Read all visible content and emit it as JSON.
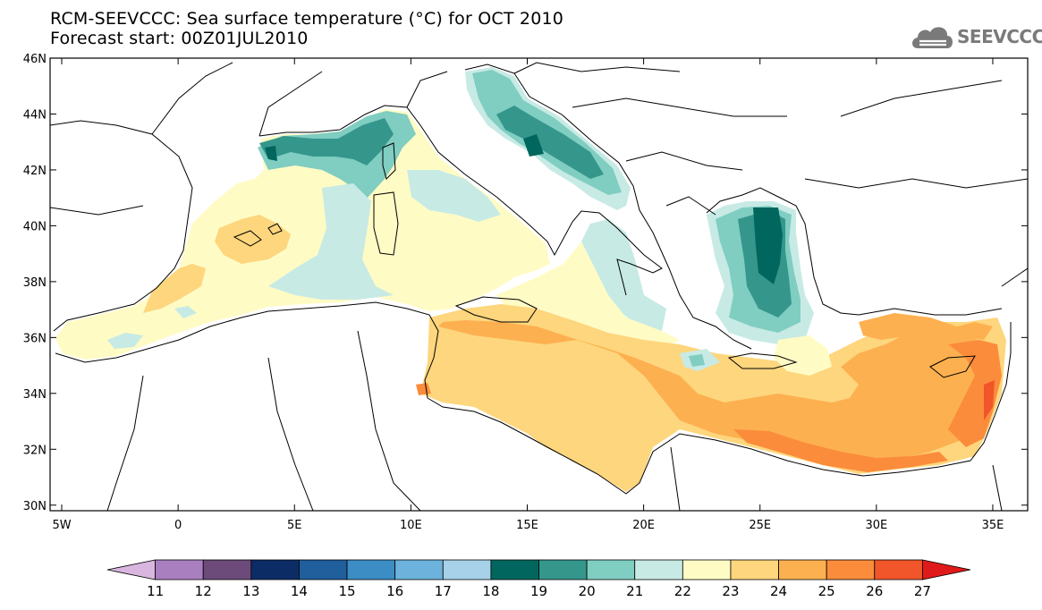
{
  "header": {
    "title_line1": "RCM-SEEVCCC: Sea surface temperature (°C) for OCT 2010",
    "title_line2": "Forecast start: 00Z01JUL2010"
  },
  "logo": {
    "text": "SEEVCCC",
    "icon": "cloud-icon"
  },
  "map": {
    "lon_range": [
      -5.5,
      36.5
    ],
    "lat_range": [
      29.8,
      46
    ],
    "lat_ticks": [
      {
        "value": 46,
        "label": "46N"
      },
      {
        "value": 44,
        "label": "44N"
      },
      {
        "value": 42,
        "label": "42N"
      },
      {
        "value": 40,
        "label": "40N"
      },
      {
        "value": 38,
        "label": "38N"
      },
      {
        "value": 36,
        "label": "36N"
      },
      {
        "value": 34,
        "label": "34N"
      },
      {
        "value": 32,
        "label": "32N"
      },
      {
        "value": 30,
        "label": "30N"
      }
    ],
    "lon_ticks": [
      {
        "value": -5,
        "label": "5W"
      },
      {
        "value": 0,
        "label": "0"
      },
      {
        "value": 5,
        "label": "5E"
      },
      {
        "value": 10,
        "label": "10E"
      },
      {
        "value": 15,
        "label": "15E"
      },
      {
        "value": 20,
        "label": "20E"
      },
      {
        "value": 25,
        "label": "25E"
      },
      {
        "value": 30,
        "label": "30E"
      },
      {
        "value": 35,
        "label": "35E"
      }
    ],
    "colors": {
      "t19": "#00665e",
      "t20": "#35968c",
      "t21": "#80cdc1",
      "t22": "#c7eae5",
      "t23": "#fffbc5",
      "t24": "#fdd67d",
      "t25": "#fdb050",
      "t26": "#fb8c3b",
      "t27": "#f1552a",
      "coast": "#000000"
    }
  },
  "colorbar": {
    "labels": [
      "11",
      "12",
      "13",
      "14",
      "15",
      "16",
      "17",
      "18",
      "19",
      "20",
      "21",
      "22",
      "23",
      "24",
      "25",
      "26",
      "27"
    ],
    "colors": [
      "#d9b6e0",
      "#a97fc0",
      "#6c4a79",
      "#0c2c66",
      "#205e9c",
      "#3c8dc4",
      "#6cb2dc",
      "#a6d1e8",
      "#00665e",
      "#35968c",
      "#80cdc1",
      "#c7eae5",
      "#fffbc5",
      "#fdd67d",
      "#fdb050",
      "#fb8c3b",
      "#f1552a",
      "#e01a1a"
    ]
  }
}
